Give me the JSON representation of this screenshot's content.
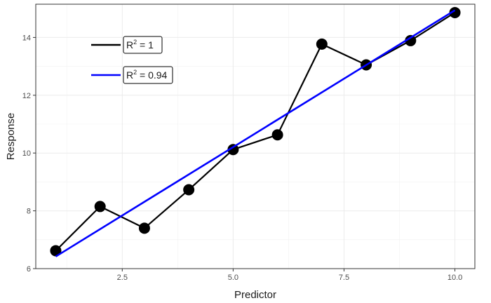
{
  "chart_data": {
    "type": "line",
    "xlabel": "Predictor",
    "ylabel": "Response",
    "xlim": [
      0.55,
      10.45
    ],
    "ylim": [
      6.0,
      15.15
    ],
    "x_ticks": [
      2.5,
      5.0,
      7.5,
      10.0
    ],
    "x_tick_labels": [
      "2.5",
      "5.0",
      "7.5",
      "10.0"
    ],
    "y_ticks": [
      6,
      8,
      10,
      12,
      14
    ],
    "y_tick_labels": [
      "6",
      "8",
      "10",
      "12",
      "14"
    ],
    "grid": true,
    "legend_position": "top-left",
    "series": [
      {
        "name": "R² = 1",
        "label_base": "R",
        "label_sup": "2",
        "label_rest": " = 1",
        "color": "#000000",
        "x": [
          1,
          2,
          3,
          4,
          5,
          6,
          7,
          8,
          9,
          10
        ],
        "y": [
          6.62,
          8.15,
          7.4,
          8.73,
          10.12,
          10.63,
          13.77,
          13.05,
          13.89,
          14.86
        ],
        "markers": true
      },
      {
        "name": "R² = 0.94",
        "label_base": "R",
        "label_sup": "2",
        "label_rest": " = 0.94",
        "color": "#0000ff",
        "x": [
          1,
          10
        ],
        "y": [
          6.42,
          14.94
        ],
        "markers": false
      }
    ]
  }
}
